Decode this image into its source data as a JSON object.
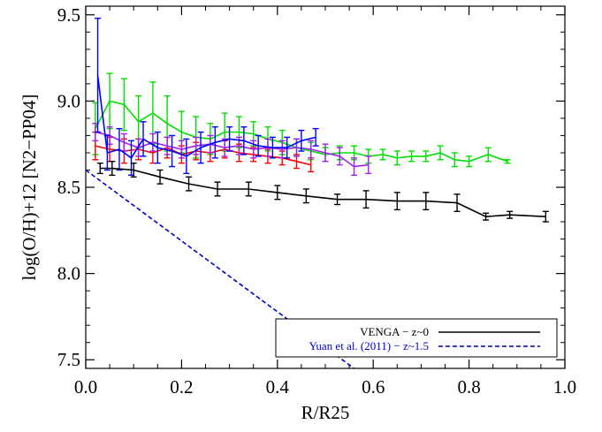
{
  "chart_data": {
    "type": "line",
    "xlabel": "R/R25",
    "ylabel": "log(O/H)+12 [N2−PP04]",
    "xlim": [
      0.0,
      1.0
    ],
    "ylim": [
      7.45,
      9.55
    ],
    "xticks": [
      0.0,
      0.2,
      0.4,
      0.6,
      0.8,
      1.0
    ],
    "xtick_labels": [
      "0.0",
      "0.2",
      "0.4",
      "0.6",
      "0.8",
      "1.0"
    ],
    "yticks": [
      7.5,
      8.0,
      8.5,
      9.0,
      9.5
    ],
    "ytick_labels": [
      "7.5",
      "8.0",
      "8.5",
      "9.0",
      "9.5"
    ],
    "grid": false,
    "legend_position": "bottom-right",
    "legend": [
      {
        "label": "VENGA − z~0",
        "color": "#000000",
        "dash": "solid"
      },
      {
        "label": "Yuan et al. (2011) − z~1.5",
        "color": "#0000cc",
        "dash": "dashed"
      }
    ],
    "series": [
      {
        "color": "#00e000",
        "x": [
          0.02,
          0.05,
          0.08,
          0.11,
          0.14,
          0.17,
          0.2,
          0.23,
          0.26,
          0.29,
          0.32,
          0.35,
          0.38,
          0.41,
          0.44,
          0.47,
          0.5,
          0.53,
          0.56,
          0.59,
          0.62,
          0.65,
          0.68,
          0.71,
          0.74,
          0.77,
          0.8,
          0.84,
          0.88
        ],
        "y": [
          8.84,
          9.0,
          8.98,
          8.88,
          8.93,
          8.87,
          8.82,
          8.79,
          8.78,
          8.82,
          8.82,
          8.81,
          8.78,
          8.76,
          8.73,
          8.71,
          8.69,
          8.7,
          8.7,
          8.68,
          8.69,
          8.67,
          8.68,
          8.68,
          8.7,
          8.66,
          8.65,
          8.69,
          8.65
        ],
        "err": [
          0.15,
          0.16,
          0.15,
          0.15,
          0.18,
          0.16,
          0.12,
          0.12,
          0.09,
          0.11,
          0.09,
          0.07,
          0.07,
          0.07,
          0.05,
          0.05,
          0.04,
          0.04,
          0.04,
          0.04,
          0.03,
          0.04,
          0.03,
          0.03,
          0.04,
          0.04,
          0.03,
          0.04,
          0.01
        ]
      },
      {
        "color": "#ff0000",
        "x": [
          0.02,
          0.05,
          0.08,
          0.11,
          0.14,
          0.17,
          0.2,
          0.23,
          0.26,
          0.29,
          0.32,
          0.35,
          0.38,
          0.41,
          0.44,
          0.47
        ],
        "y": [
          8.74,
          8.72,
          8.71,
          8.72,
          8.7,
          8.73,
          8.69,
          8.71,
          8.7,
          8.72,
          8.7,
          8.69,
          8.68,
          8.67,
          8.65,
          8.63
        ],
        "err": [
          0.08,
          0.07,
          0.07,
          0.06,
          0.06,
          0.06,
          0.05,
          0.05,
          0.05,
          0.05,
          0.05,
          0.04,
          0.04,
          0.04,
          0.04,
          0.04
        ]
      },
      {
        "color": "#a020f0",
        "x": [
          0.02,
          0.05,
          0.08,
          0.11,
          0.14,
          0.17,
          0.2,
          0.23,
          0.26,
          0.29,
          0.32,
          0.35,
          0.38,
          0.41,
          0.44,
          0.47,
          0.5,
          0.53,
          0.56,
          0.59
        ],
        "y": [
          8.82,
          8.8,
          8.76,
          8.73,
          8.76,
          8.74,
          8.72,
          8.74,
          8.75,
          8.73,
          8.74,
          8.72,
          8.73,
          8.72,
          8.73,
          8.72,
          8.7,
          8.68,
          8.62,
          8.63
        ],
        "err": [
          0.05,
          0.05,
          0.05,
          0.05,
          0.05,
          0.05,
          0.05,
          0.05,
          0.05,
          0.05,
          0.05,
          0.05,
          0.05,
          0.05,
          0.05,
          0.05,
          0.05,
          0.05,
          0.05,
          0.05
        ]
      },
      {
        "color": "#0000ff",
        "x": [
          0.025,
          0.045,
          0.07,
          0.095,
          0.12,
          0.15,
          0.18,
          0.21,
          0.24,
          0.27,
          0.3,
          0.33,
          0.36,
          0.39,
          0.42,
          0.45,
          0.48
        ],
        "y": [
          9.15,
          8.7,
          8.72,
          8.67,
          8.78,
          8.73,
          8.71,
          8.68,
          8.73,
          8.76,
          8.78,
          8.77,
          8.74,
          8.73,
          8.73,
          8.77,
          8.79
        ],
        "err": [
          0.33,
          0.1,
          0.12,
          0.1,
          0.1,
          0.09,
          0.09,
          0.1,
          0.09,
          0.09,
          0.07,
          0.08,
          0.06,
          0.06,
          0.06,
          0.06,
          0.05
        ]
      },
      {
        "color": "#000000",
        "x": [
          0.03,
          0.055,
          0.1,
          0.155,
          0.215,
          0.275,
          0.34,
          0.4,
          0.46,
          0.525,
          0.585,
          0.65,
          0.71,
          0.775,
          0.835,
          0.885,
          0.96
        ],
        "y": [
          8.61,
          8.61,
          8.6,
          8.56,
          8.52,
          8.49,
          8.49,
          8.47,
          8.45,
          8.43,
          8.43,
          8.42,
          8.42,
          8.41,
          8.33,
          8.34,
          8.33
        ],
        "err": [
          0.03,
          0.04,
          0.04,
          0.04,
          0.04,
          0.04,
          0.04,
          0.04,
          0.04,
          0.03,
          0.05,
          0.05,
          0.05,
          0.05,
          0.02,
          0.02,
          0.03
        ]
      },
      {
        "color": "#0000cc",
        "dash": "dashed",
        "x": [
          0.0,
          0.56
        ],
        "y": [
          8.6,
          7.45
        ]
      }
    ]
  }
}
